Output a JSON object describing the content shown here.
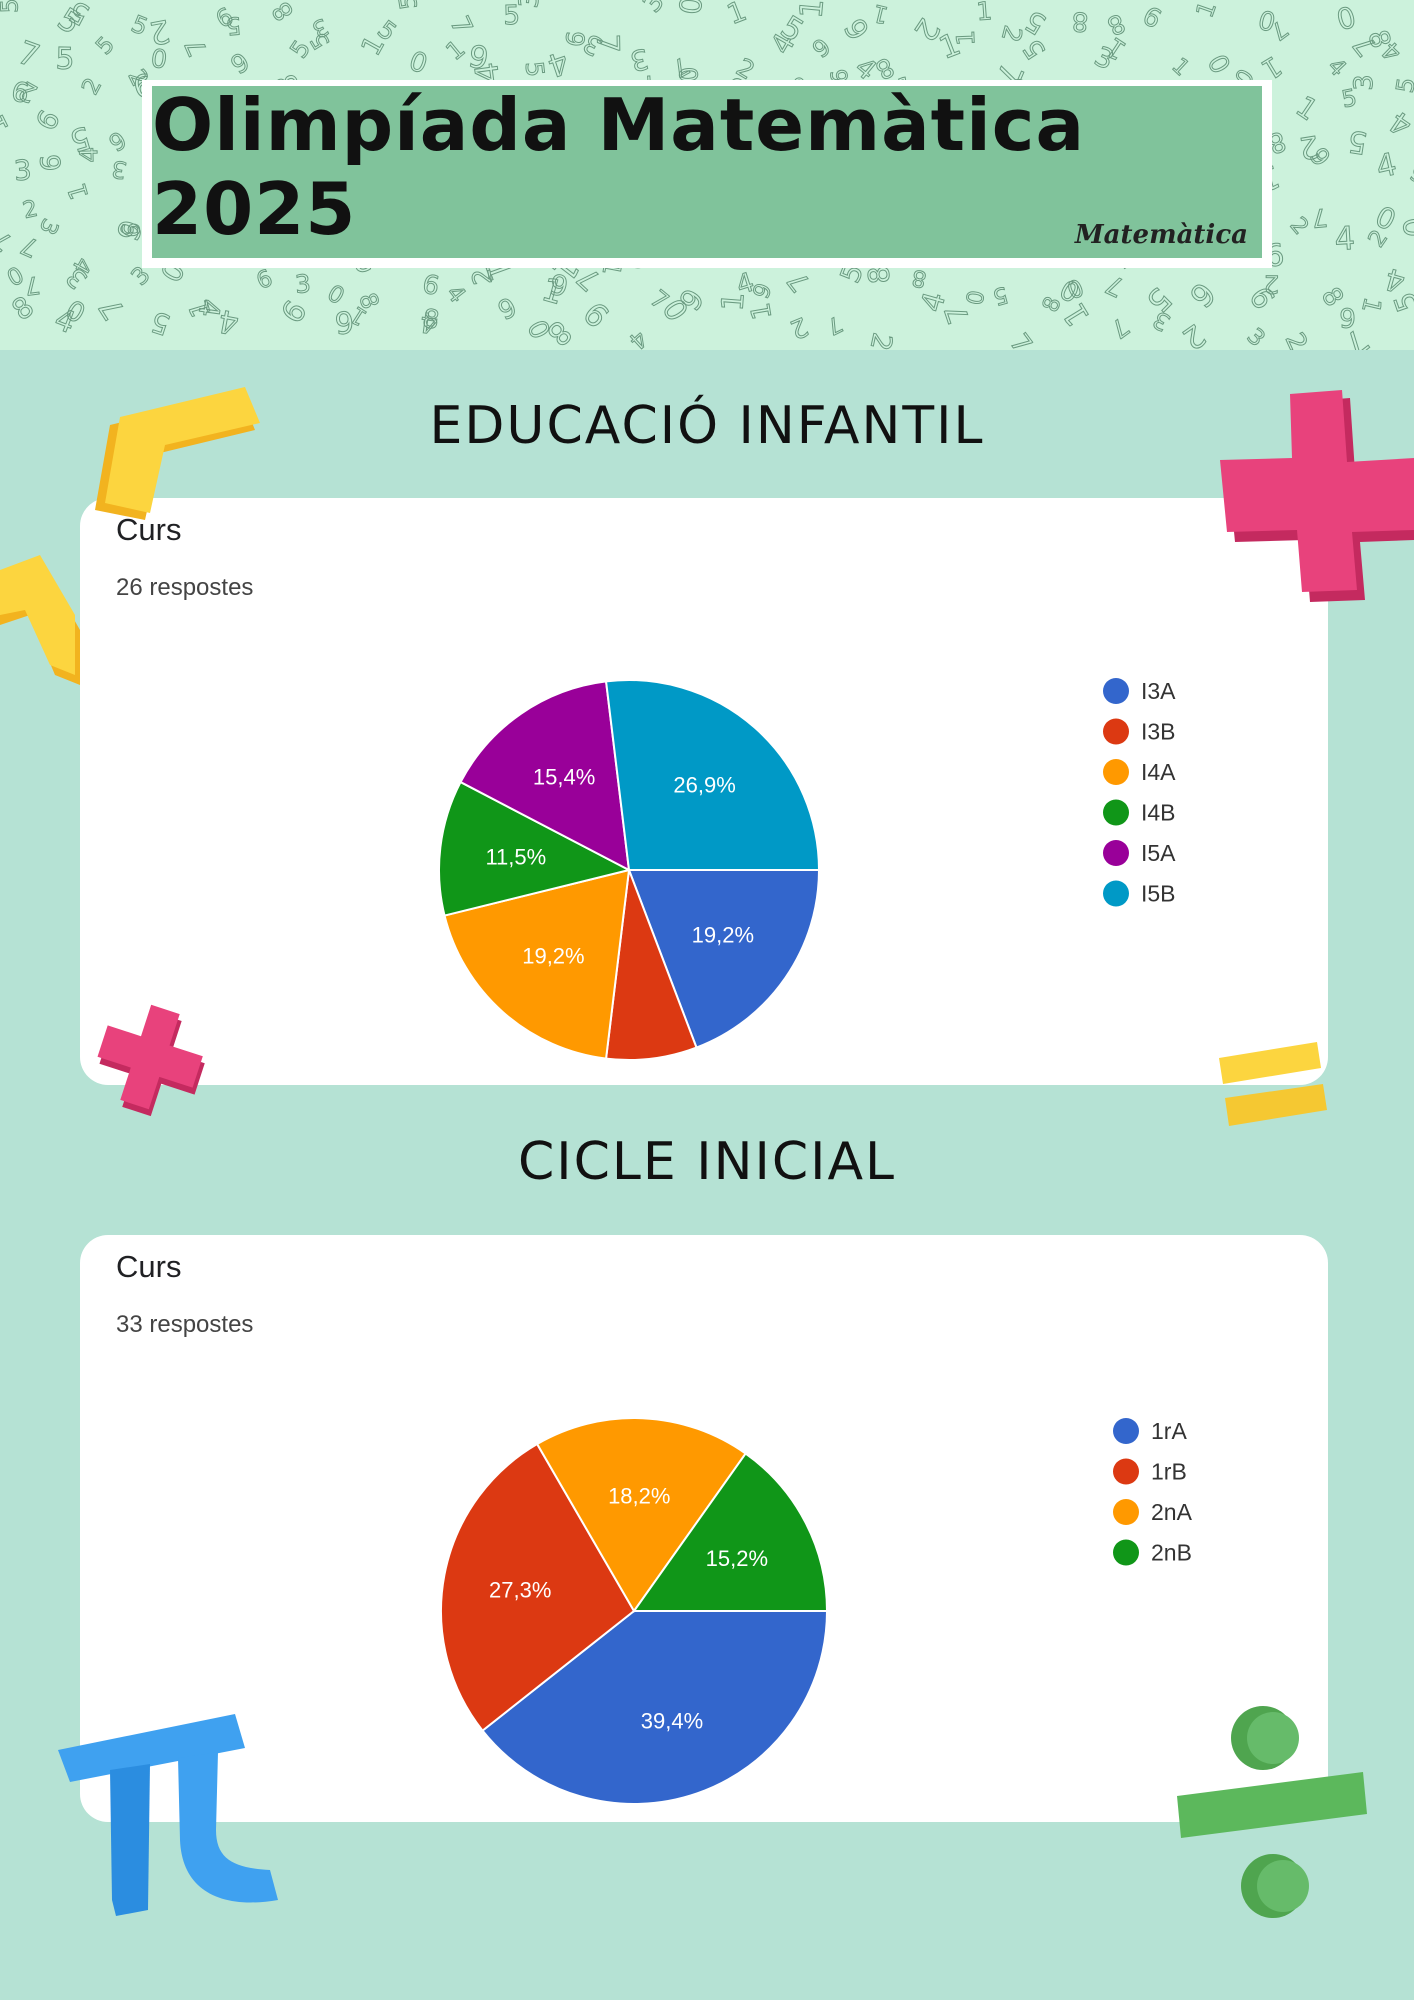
{
  "header": {
    "title": "Olimpíada Matemàtica 2025",
    "logo_text": "Matemàtica",
    "pattern_glyphs": [
      "1",
      "2",
      "3",
      "4",
      "5",
      "6",
      "7",
      "8",
      "9",
      "0"
    ]
  },
  "sections": [
    {
      "title": "EDUCACIÓ INFANTIL",
      "card_title": "Curs",
      "responses": "26 respostes"
    },
    {
      "title": "CICLE INICIAL",
      "card_title": "Curs",
      "responses": "33 respostes"
    }
  ],
  "chart_data": [
    {
      "type": "pie",
      "title": "Curs",
      "subtitle": "26 respostes",
      "legend_position": "right",
      "start_angle_deg": 90,
      "slices": [
        {
          "name": "I3A",
          "percent": 19.2,
          "label": "19,2%",
          "color": "#3366cc"
        },
        {
          "name": "I3B",
          "percent": 7.7,
          "label": "",
          "color": "#dc3912"
        },
        {
          "name": "I4A",
          "percent": 19.2,
          "label": "19,2%",
          "color": "#ff9900"
        },
        {
          "name": "I4B",
          "percent": 11.5,
          "label": "11,5%",
          "color": "#109618"
        },
        {
          "name": "I5A",
          "percent": 15.4,
          "label": "15,4%",
          "color": "#990099"
        },
        {
          "name": "I5B",
          "percent": 26.9,
          "label": "26,9%",
          "color": "#0099c6"
        }
      ]
    },
    {
      "type": "pie",
      "title": "Curs",
      "subtitle": "33 respostes",
      "legend_position": "right",
      "start_angle_deg": 90,
      "slices": [
        {
          "name": "1rA",
          "percent": 39.4,
          "label": "39,4%",
          "color": "#3366cc"
        },
        {
          "name": "1rB",
          "percent": 27.3,
          "label": "27,3%",
          "color": "#dc3912"
        },
        {
          "name": "2nA",
          "percent": 18.2,
          "label": "18,2%",
          "color": "#ff9900"
        },
        {
          "name": "2nB",
          "percent": 15.2,
          "label": "15,2%",
          "color": "#109618"
        }
      ]
    }
  ],
  "decorations": [
    "plus-icon",
    "minus-icon",
    "equals-icon",
    "pi-icon",
    "divide-icon"
  ],
  "colors": {
    "background": "#b5e2d4",
    "header_band": "#ccf2dc",
    "title_box": "#80c39b",
    "plus_pink": "#e8427c",
    "yellow": "#fcd53f",
    "pi_blue": "#3fa1f0",
    "divide_green": "#5cb85c"
  }
}
